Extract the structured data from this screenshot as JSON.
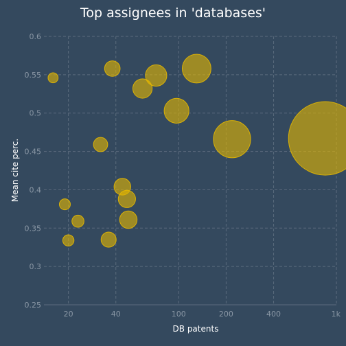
{
  "chart_data": {
    "type": "scatter",
    "title": "Top assignees in 'databases'",
    "xlabel": "DB patents",
    "ylabel": "Mean cite perc.",
    "x_scale": "log",
    "xlim": [
      14,
      1000
    ],
    "ylim": [
      0.25,
      0.6
    ],
    "x_ticks": [
      20,
      40,
      100,
      200,
      400,
      1000
    ],
    "x_tick_labels": [
      "20",
      "40",
      "100",
      "200",
      "400",
      "1k"
    ],
    "y_ticks": [
      0.25,
      0.3,
      0.35,
      0.4,
      0.45,
      0.5,
      0.55,
      0.6
    ],
    "y_tick_labels": [
      "0.25",
      "0.3",
      "0.35",
      "0.4",
      "0.45",
      "0.5",
      "0.55",
      "0.6"
    ],
    "grid": true,
    "marker_color": "#e6b800",
    "points": [
      {
        "x": 16,
        "y": 0.546
      },
      {
        "x": 19,
        "y": 0.381
      },
      {
        "x": 20,
        "y": 0.334
      },
      {
        "x": 23,
        "y": 0.359
      },
      {
        "x": 32,
        "y": 0.459
      },
      {
        "x": 36,
        "y": 0.335
      },
      {
        "x": 38,
        "y": 0.558
      },
      {
        "x": 44,
        "y": 0.404
      },
      {
        "x": 48,
        "y": 0.361
      },
      {
        "x": 47,
        "y": 0.388
      },
      {
        "x": 59,
        "y": 0.532
      },
      {
        "x": 72,
        "y": 0.549
      },
      {
        "x": 97,
        "y": 0.503
      },
      {
        "x": 130,
        "y": 0.558
      },
      {
        "x": 218,
        "y": 0.466
      },
      {
        "x": 850,
        "y": 0.467
      }
    ]
  }
}
